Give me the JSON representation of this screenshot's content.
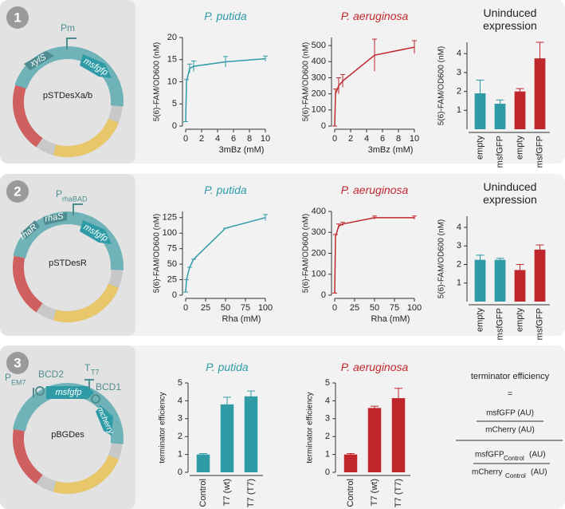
{
  "plasmids": [
    {
      "number": "1",
      "name": "pSTDesXa/b",
      "promoter": "Pm",
      "genes": [
        "xylS",
        "msfgfp"
      ]
    },
    {
      "number": "2",
      "name": "pSTDesR",
      "promoter": "P",
      "promoter_sub": "rhaBAD",
      "genes": [
        "rhaR",
        "rhaS",
        "msfgfp"
      ]
    },
    {
      "number": "3",
      "name": "pBGDes",
      "promoter": "P",
      "promoter_sub": "EM7",
      "parts": [
        "BCD2",
        "BCD1"
      ],
      "terminator": "T",
      "terminator_sub": "T7",
      "genes": [
        "msfgfp",
        "mcherry"
      ]
    }
  ],
  "formula": {
    "lhs": "terminator efficiency",
    "eq": "=",
    "num": "msfGFP (AU)",
    "den": "mCherry (AU)",
    "num2": [
      "msfGFP",
      "Control",
      "(AU)"
    ],
    "den2": [
      "mCherry",
      "Control",
      "(AU)"
    ]
  },
  "chart_data": [
    {
      "type": "line",
      "title": "P. putida",
      "title_color": "#2e9ba6",
      "title_italic": true,
      "ylabel": "5(6)-FAM/OD600 (nM)",
      "xlabel": "3mBz (mM)",
      "color": "#2e9ba6",
      "x": [
        0,
        0.1,
        0.5,
        1,
        5,
        10
      ],
      "values": [
        1,
        10,
        13,
        13.5,
        14.5,
        15.2
      ],
      "errors": [
        0,
        0.5,
        1,
        1.2,
        1.2,
        0.6
      ],
      "xlim": [
        0,
        10
      ],
      "xticks": [
        0,
        2,
        4,
        6,
        8,
        10
      ],
      "ylim": [
        0,
        20
      ],
      "yticks": [
        0,
        5,
        10,
        15,
        20
      ]
    },
    {
      "type": "line",
      "title": "P. aeruginosa",
      "title_color": "#c0272d",
      "title_italic": true,
      "ylabel": "5(6)-FAM/OD600 (nM)",
      "xlabel": "3mBz (mM)",
      "color": "#c0272d",
      "x": [
        0,
        0.1,
        0.5,
        1,
        5,
        10
      ],
      "values": [
        0,
        200,
        250,
        280,
        440,
        490
      ],
      "errors": [
        0,
        30,
        50,
        40,
        100,
        40
      ],
      "xlim": [
        0,
        10
      ],
      "xticks": [
        0,
        2,
        4,
        6,
        8,
        10
      ],
      "ylim": [
        0,
        550
      ],
      "yticks": [
        0,
        100,
        200,
        300,
        400,
        500
      ]
    },
    {
      "type": "bar",
      "title": "Uninduced expression",
      "title_color": "#222222",
      "title_italic": false,
      "ylabel": "5(6)-FAM/OD600 (nM)",
      "categories": [
        "empty",
        "msfGFP",
        "empty",
        "msfGFP"
      ],
      "values": [
        1.9,
        1.35,
        2,
        3.75
      ],
      "errors": [
        0.7,
        0.2,
        0.15,
        0.85
      ],
      "colors": [
        "#2e9ba6",
        "#2e9ba6",
        "#c0272d",
        "#c0272d"
      ],
      "ylim": [
        0,
        4.6
      ],
      "yticks": [
        1,
        2,
        3,
        4
      ]
    },
    {
      "type": "line",
      "title": "P. putida",
      "title_color": "#2e9ba6",
      "title_italic": true,
      "ylabel": "5(6)-FAM/OD600 (nM)",
      "xlabel": "Rha (mM)",
      "color": "#2e9ba6",
      "x": [
        0,
        1,
        5,
        10,
        50,
        100
      ],
      "values": [
        5,
        25,
        45,
        58,
        108,
        125
      ],
      "errors": [
        0,
        0,
        0,
        0,
        0,
        5
      ],
      "xlim": [
        0,
        100
      ],
      "xticks": [
        0,
        25,
        50,
        75,
        100
      ],
      "ylim": [
        0,
        135
      ],
      "yticks": [
        0,
        25,
        50,
        75,
        100,
        125
      ]
    },
    {
      "type": "line",
      "title": "P. aeruginosa",
      "title_color": "#c0272d",
      "title_italic": true,
      "ylabel": "5(6)-FAM/OD600 (nM)",
      "xlabel": "Rha (mM)",
      "color": "#c0272d",
      "x": [
        0,
        1,
        5,
        10,
        50,
        100
      ],
      "values": [
        10,
        280,
        330,
        340,
        370,
        370
      ],
      "errors": [
        0,
        10,
        10,
        8,
        8,
        8
      ],
      "xlim": [
        0,
        100
      ],
      "xticks": [
        0,
        25,
        50,
        75,
        100
      ],
      "ylim": [
        0,
        400
      ],
      "yticks": [
        0,
        100,
        200,
        300,
        400
      ]
    },
    {
      "type": "bar",
      "title": "Uninduced expression",
      "title_color": "#222222",
      "title_italic": false,
      "ylabel": "5(6)-FAM/OD600 (nM)",
      "categories": [
        "empty",
        "msfGFP",
        "empty",
        "msfGFP"
      ],
      "values": [
        2.25,
        2.25,
        1.7,
        2.8
      ],
      "errors": [
        0.25,
        0.08,
        0.3,
        0.25
      ],
      "colors": [
        "#2e9ba6",
        "#2e9ba6",
        "#c0272d",
        "#c0272d"
      ],
      "ylim": [
        0,
        4.6
      ],
      "yticks": [
        1,
        2,
        3,
        4
      ]
    },
    {
      "type": "bar",
      "title": "P. putida",
      "title_color": "#2e9ba6",
      "title_italic": true,
      "ylabel": "terminator efficiency",
      "categories": [
        "Control",
        "T7 (wt)",
        "T7 (T7)"
      ],
      "values": [
        1,
        3.8,
        4.25
      ],
      "errors": [
        0.05,
        0.4,
        0.3
      ],
      "colors": [
        "#2e9ba6",
        "#2e9ba6",
        "#2e9ba6"
      ],
      "ylim": [
        0,
        5
      ],
      "yticks": [
        0,
        1,
        2,
        3,
        4,
        5
      ]
    },
    {
      "type": "bar",
      "title": "P. aeruginosa",
      "title_color": "#c0272d",
      "title_italic": true,
      "ylabel": "terminator efficiency",
      "categories": [
        "Control",
        "T7 (wt)",
        "T7 (T7)"
      ],
      "values": [
        1,
        3.6,
        4.15
      ],
      "errors": [
        0.05,
        0.1,
        0.55
      ],
      "colors": [
        "#c0272d",
        "#c0272d",
        "#c0272d"
      ],
      "ylim": [
        0,
        5
      ],
      "yticks": [
        0,
        1,
        2,
        3,
        4,
        5
      ]
    }
  ]
}
